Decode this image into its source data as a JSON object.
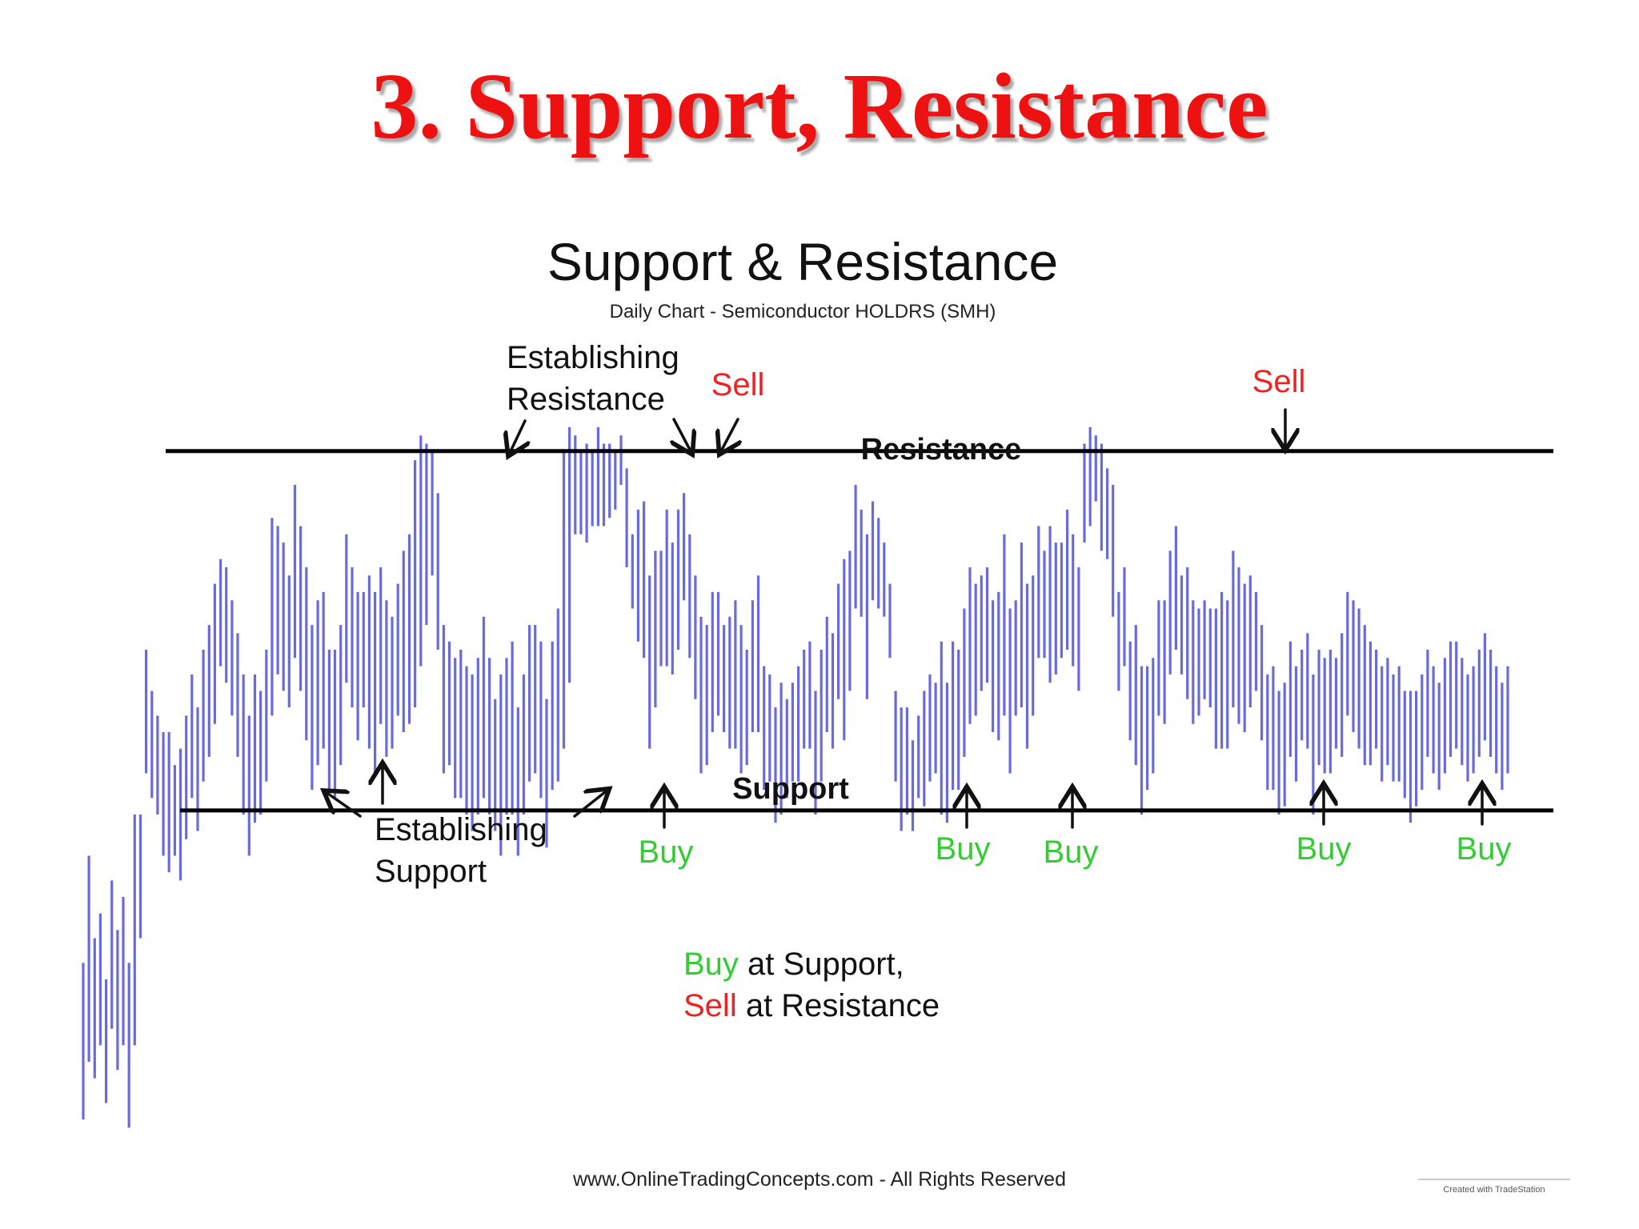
{
  "slide": {
    "title": "3. Support, Resistance"
  },
  "colors": {
    "title": "#ee1111",
    "bars": "#6a6ae0",
    "buy": "#33cc33",
    "sell": "#ee2222",
    "lines": "#000000",
    "text": "#111111"
  },
  "chart_data": {
    "type": "bar",
    "title": "Support & Resistance",
    "subtitle": "Daily Chart - Semiconductor HOLDRS (SMH)",
    "xlabel": "",
    "ylabel": "",
    "ylim": [
      0,
      100
    ],
    "grid": false,
    "levels": [
      {
        "name": "Resistance",
        "value": 84.1
      },
      {
        "name": "Support",
        "value": 40.5
      }
    ],
    "bars": [
      [
        3,
        22
      ],
      [
        10,
        35
      ],
      [
        8,
        25
      ],
      [
        12,
        28
      ],
      [
        5,
        20
      ],
      [
        14,
        32
      ],
      [
        9,
        26
      ],
      [
        12,
        30
      ],
      [
        2,
        22
      ],
      [
        12,
        40
      ],
      [
        25,
        40
      ],
      [
        45,
        60
      ],
      [
        42,
        55
      ],
      [
        40,
        52
      ],
      [
        35,
        50
      ],
      [
        33,
        50
      ],
      [
        35,
        46
      ],
      [
        32,
        48
      ],
      [
        37,
        52
      ],
      [
        42,
        57
      ],
      [
        38,
        53
      ],
      [
        44,
        60
      ],
      [
        47,
        63
      ],
      [
        51,
        68
      ],
      [
        58,
        71
      ],
      [
        56,
        70
      ],
      [
        52,
        66
      ],
      [
        47,
        62
      ],
      [
        40,
        57
      ],
      [
        35,
        52
      ],
      [
        39,
        57
      ],
      [
        40,
        55
      ],
      [
        44,
        60
      ],
      [
        52,
        76
      ],
      [
        57,
        75
      ],
      [
        55,
        73
      ],
      [
        53,
        69
      ],
      [
        59,
        80
      ],
      [
        55,
        75
      ],
      [
        49,
        70
      ],
      [
        43,
        63
      ],
      [
        46,
        66
      ],
      [
        48,
        67
      ],
      [
        43,
        60
      ],
      [
        42,
        60
      ],
      [
        46,
        63
      ],
      [
        56,
        74
      ],
      [
        53,
        70
      ],
      [
        49,
        67
      ],
      [
        53,
        67
      ],
      [
        48,
        69
      ],
      [
        45,
        67
      ],
      [
        51,
        70
      ],
      [
        47,
        66
      ],
      [
        48,
        64
      ],
      [
        52,
        68
      ],
      [
        50,
        72
      ],
      [
        51,
        74
      ],
      [
        53,
        83
      ],
      [
        58,
        86
      ],
      [
        63,
        85
      ],
      [
        69,
        84
      ],
      [
        60,
        79
      ],
      [
        45,
        63
      ],
      [
        46,
        61
      ],
      [
        42,
        59
      ],
      [
        42,
        60
      ],
      [
        40,
        58
      ],
      [
        38,
        57
      ],
      [
        40,
        59
      ],
      [
        42,
        64
      ],
      [
        40,
        59
      ],
      [
        38,
        54
      ],
      [
        35,
        57
      ],
      [
        40,
        59
      ],
      [
        40,
        61
      ],
      [
        35,
        53
      ],
      [
        40,
        57
      ],
      [
        44,
        63
      ],
      [
        45,
        63
      ],
      [
        42,
        61
      ],
      [
        36,
        54
      ],
      [
        43,
        61
      ],
      [
        44,
        65
      ],
      [
        48,
        84
      ],
      [
        56,
        87
      ],
      [
        74,
        86
      ],
      [
        74,
        84
      ],
      [
        73,
        85
      ],
      [
        75,
        84
      ],
      [
        75,
        87
      ],
      [
        75,
        85
      ],
      [
        76,
        85
      ],
      [
        77,
        84
      ],
      [
        80,
        86
      ],
      [
        70,
        82
      ],
      [
        65,
        74
      ],
      [
        61,
        77
      ],
      [
        59,
        78
      ],
      [
        48,
        69
      ],
      [
        53,
        72
      ],
      [
        58,
        72
      ],
      [
        58,
        77
      ],
      [
        57,
        73
      ],
      [
        60,
        77
      ],
      [
        66,
        79
      ],
      [
        59,
        74
      ],
      [
        54,
        69
      ],
      [
        45,
        64
      ],
      [
        46,
        63
      ],
      [
        50,
        67
      ],
      [
        52,
        67
      ],
      [
        50,
        63
      ],
      [
        48,
        64
      ],
      [
        48,
        66
      ],
      [
        45,
        63
      ],
      [
        46,
        60
      ],
      [
        50,
        66
      ],
      [
        50,
        69
      ],
      [
        43,
        58
      ],
      [
        44,
        57
      ],
      [
        39,
        53
      ],
      [
        40,
        56
      ],
      [
        42,
        54
      ],
      [
        44,
        56
      ],
      [
        44,
        58
      ],
      [
        48,
        60
      ],
      [
        48,
        61
      ],
      [
        40,
        55
      ],
      [
        44,
        60
      ],
      [
        50,
        64
      ],
      [
        48,
        62
      ],
      [
        54,
        68
      ],
      [
        49,
        71
      ],
      [
        55,
        72
      ],
      [
        65,
        80
      ],
      [
        64,
        77
      ],
      [
        54,
        74
      ],
      [
        66,
        78
      ],
      [
        65,
        76
      ],
      [
        64,
        73
      ],
      [
        59,
        68
      ],
      [
        44,
        55
      ],
      [
        38,
        53
      ],
      [
        40,
        53
      ],
      [
        38,
        49
      ],
      [
        42,
        52
      ],
      [
        41,
        55
      ],
      [
        44,
        57
      ],
      [
        45,
        56
      ],
      [
        40,
        61
      ],
      [
        39,
        56
      ],
      [
        43,
        61
      ],
      [
        43,
        60
      ],
      [
        47,
        65
      ],
      [
        51,
        70
      ],
      [
        52,
        68
      ],
      [
        55,
        69
      ],
      [
        56,
        70
      ],
      [
        50,
        66
      ],
      [
        49,
        67
      ],
      [
        52,
        74
      ],
      [
        45,
        65
      ],
      [
        52,
        66
      ],
      [
        53,
        73
      ],
      [
        48,
        68
      ],
      [
        52,
        69
      ],
      [
        59,
        75
      ],
      [
        59,
        72
      ],
      [
        56,
        75
      ],
      [
        57,
        73
      ],
      [
        59,
        73
      ],
      [
        60,
        77
      ],
      [
        58,
        74
      ],
      [
        55,
        70
      ],
      [
        73,
        85
      ],
      [
        75,
        87
      ],
      [
        78,
        86
      ],
      [
        72,
        85
      ],
      [
        71,
        82
      ],
      [
        64,
        80
      ],
      [
        55,
        67
      ],
      [
        58,
        70
      ],
      [
        49,
        61
      ],
      [
        46,
        63
      ],
      [
        40,
        58
      ],
      [
        43,
        58
      ],
      [
        45,
        59
      ],
      [
        52,
        66
      ],
      [
        51,
        66
      ],
      [
        57,
        72
      ],
      [
        60,
        75
      ],
      [
        57,
        69
      ],
      [
        54,
        70
      ],
      [
        51,
        66
      ],
      [
        52,
        65
      ],
      [
        54,
        66
      ],
      [
        53,
        65
      ],
      [
        48,
        65
      ],
      [
        48,
        67
      ],
      [
        48,
        66
      ],
      [
        53,
        72
      ],
      [
        51,
        70
      ],
      [
        50,
        68
      ],
      [
        53,
        69
      ],
      [
        55,
        67
      ],
      [
        49,
        63
      ],
      [
        43,
        57
      ],
      [
        43,
        58
      ],
      [
        40,
        55
      ],
      [
        41,
        56
      ],
      [
        47,
        61
      ],
      [
        44,
        58
      ],
      [
        49,
        60
      ],
      [
        48,
        62
      ],
      [
        40,
        57
      ],
      [
        46,
        60
      ],
      [
        45,
        59
      ],
      [
        45,
        60
      ],
      [
        48,
        59
      ],
      [
        47,
        62
      ],
      [
        52,
        67
      ],
      [
        50,
        66
      ],
      [
        48,
        65
      ],
      [
        46,
        63
      ],
      [
        46,
        61
      ],
      [
        48,
        60
      ],
      [
        44,
        58
      ],
      [
        46,
        59
      ],
      [
        44,
        57
      ],
      [
        44,
        58
      ],
      [
        42,
        55
      ],
      [
        39,
        55
      ],
      [
        41,
        55
      ],
      [
        43,
        57
      ],
      [
        47,
        60
      ],
      [
        45,
        58
      ],
      [
        43,
        56
      ],
      [
        45,
        59
      ],
      [
        47,
        61
      ],
      [
        48,
        61
      ],
      [
        46,
        59
      ],
      [
        44,
        57
      ],
      [
        45,
        58
      ],
      [
        47,
        60
      ],
      [
        49,
        62
      ],
      [
        47,
        60
      ],
      [
        45,
        58
      ],
      [
        43,
        56
      ],
      [
        45,
        58
      ]
    ],
    "annotations": [
      {
        "text": "Resistance"
      },
      {
        "text": "Support"
      },
      {
        "text": "Establishing Resistance"
      },
      {
        "text": "Establishing Support"
      },
      {
        "text": "Sell"
      },
      {
        "text": "Sell"
      },
      {
        "text": "Buy"
      },
      {
        "text": "Buy"
      },
      {
        "text": "Buy"
      },
      {
        "text": "Buy"
      },
      {
        "text": "Buy"
      }
    ],
    "note": {
      "buy_word": "Buy",
      "line1_rest": " at Support,",
      "sell_word": "Sell",
      "line2_rest": " at Resistance"
    }
  },
  "footer": {
    "source": "www.OnlineTradingConcepts.com - All Rights Reserved",
    "credit": "Created with TradeStation"
  }
}
